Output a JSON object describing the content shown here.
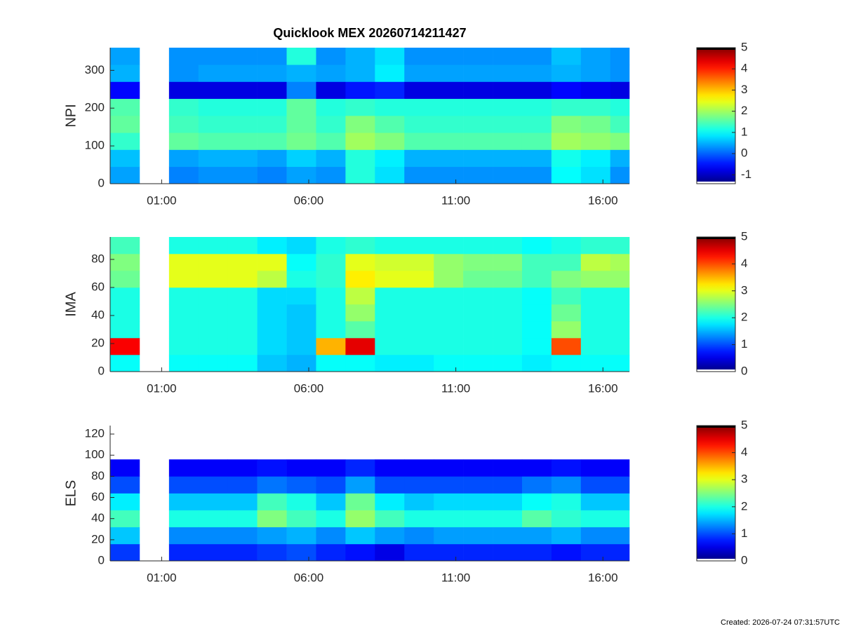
{
  "chart_data": [
    {
      "type": "heatmap",
      "title": "Quicklook MEX 20260714211427",
      "ylabel": "NPI",
      "colormap": "jet",
      "xlim": [
        -0.75,
        16.9
      ],
      "xticks": [
        {
          "value": 1,
          "label": "01:00"
        },
        {
          "value": 6,
          "label": "06:00"
        },
        {
          "value": 11,
          "label": "11:00"
        },
        {
          "value": 16,
          "label": "16:00"
        }
      ],
      "ylim": [
        0,
        360
      ],
      "yticks": [
        0,
        100,
        200,
        300
      ],
      "clim": [
        -1.42,
        5
      ],
      "cticks": [
        -1,
        0,
        1,
        2,
        3,
        4,
        5
      ],
      "xbins": [
        -0.75,
        0.25,
        1.25,
        2.25,
        3.25,
        4.25,
        5.25,
        6.25,
        7.25,
        8.25,
        9.25,
        10.25,
        11.25,
        12.25,
        13.25,
        14.25,
        15.25,
        16.25,
        16.9
      ],
      "ybins": [
        0,
        45,
        90,
        135,
        180,
        225,
        270,
        315,
        360
      ],
      "z": [
        [
          0.4,
          0.6,
          1.3,
          1.6,
          1.5,
          -0.6,
          0.5,
          0.4
        ],
        [
          null,
          null,
          null,
          null,
          null,
          null,
          null,
          null
        ],
        [
          0.2,
          0.4,
          1.6,
          1.4,
          1.3,
          -0.8,
          0.3,
          0.3
        ],
        [
          0.3,
          0.5,
          1.5,
          1.3,
          1.2,
          -0.8,
          0.4,
          0.3
        ],
        [
          0.3,
          0.5,
          1.5,
          1.3,
          1.2,
          -0.8,
          0.4,
          0.3
        ],
        [
          0.2,
          0.4,
          1.5,
          1.3,
          1.2,
          -0.8,
          0.4,
          0.3
        ],
        [
          0.4,
          0.7,
          1.7,
          1.6,
          1.6,
          0.2,
          0.5,
          1.2
        ],
        [
          0.3,
          0.5,
          1.5,
          1.3,
          1.2,
          -0.8,
          0.4,
          0.3
        ],
        [
          1.2,
          1.2,
          2.0,
          1.8,
          1.3,
          -0.5,
          0.5,
          0.5
        ],
        [
          0.8,
          0.9,
          1.8,
          1.5,
          1.2,
          -0.4,
          0.9,
          0.8
        ],
        [
          0.3,
          0.5,
          1.5,
          1.3,
          1.2,
          -0.8,
          0.4,
          0.3
        ],
        [
          0.3,
          0.5,
          1.5,
          1.3,
          1.2,
          -0.8,
          0.4,
          0.3
        ],
        [
          0.3,
          0.5,
          1.5,
          1.3,
          1.2,
          -0.8,
          0.4,
          0.3
        ],
        [
          0.3,
          0.5,
          1.5,
          1.3,
          1.2,
          -0.8,
          0.4,
          0.3
        ],
        [
          0.3,
          0.5,
          1.5,
          1.3,
          1.2,
          -0.8,
          0.4,
          0.3
        ],
        [
          1.0,
          1.1,
          2.0,
          1.8,
          1.3,
          -0.6,
          0.5,
          0.6
        ],
        [
          0.8,
          0.9,
          1.9,
          1.7,
          1.3,
          -0.7,
          0.4,
          0.4
        ],
        [
          0.3,
          0.5,
          1.8,
          1.4,
          1.2,
          -0.8,
          0.3,
          0.3
        ]
      ]
    },
    {
      "type": "heatmap",
      "ylabel": "IMA",
      "colormap": "jet",
      "xlim": [
        -0.75,
        16.9
      ],
      "xticks": [
        {
          "value": 1,
          "label": "01:00"
        },
        {
          "value": 6,
          "label": "06:00"
        },
        {
          "value": 11,
          "label": "11:00"
        },
        {
          "value": 16,
          "label": "16:00"
        }
      ],
      "ylim": [
        0,
        96
      ],
      "yticks": [
        0,
        20,
        40,
        60,
        80
      ],
      "clim": [
        0,
        5
      ],
      "cticks": [
        0,
        1,
        2,
        3,
        4,
        5
      ],
      "xbins": [
        -0.75,
        0.25,
        1.25,
        2.25,
        3.25,
        4.25,
        5.25,
        6.25,
        7.25,
        8.25,
        9.25,
        10.25,
        11.25,
        12.25,
        13.25,
        14.25,
        15.25,
        16.25,
        16.9
      ],
      "ybins": [
        0,
        12,
        24,
        36,
        48,
        60,
        72,
        84,
        96
      ],
      "z": [
        [
          1.9,
          4.4,
          2.0,
          2.0,
          2.0,
          2.4,
          2.5,
          2.2
        ],
        [
          null,
          null,
          null,
          null,
          null,
          null,
          null,
          null
        ],
        [
          1.9,
          2.0,
          2.0,
          2.0,
          2.0,
          3.0,
          3.0,
          2.0
        ],
        [
          1.9,
          2.0,
          2.0,
          2.0,
          2.0,
          3.0,
          3.0,
          2.0
        ],
        [
          1.9,
          2.0,
          2.0,
          2.0,
          2.0,
          3.0,
          3.0,
          2.0
        ],
        [
          1.6,
          1.7,
          1.7,
          1.7,
          1.7,
          2.8,
          3.0,
          1.8
        ],
        [
          1.5,
          1.6,
          1.6,
          1.6,
          1.7,
          2.0,
          1.9,
          1.7
        ],
        [
          1.9,
          3.5,
          2.0,
          2.0,
          2.0,
          2.1,
          2.1,
          2.0
        ],
        [
          1.9,
          4.5,
          2.3,
          2.6,
          2.8,
          3.2,
          3.0,
          2.1
        ],
        [
          1.8,
          2.0,
          2.0,
          2.0,
          2.0,
          3.0,
          2.9,
          2.0
        ],
        [
          1.8,
          2.0,
          2.0,
          2.0,
          2.0,
          3.0,
          2.9,
          2.0
        ],
        [
          1.9,
          2.0,
          2.0,
          2.0,
          2.0,
          2.6,
          2.6,
          2.0
        ],
        [
          1.9,
          2.0,
          2.0,
          2.0,
          2.0,
          2.4,
          2.5,
          2.0
        ],
        [
          1.9,
          2.0,
          2.0,
          2.0,
          2.0,
          2.4,
          2.5,
          2.0
        ],
        [
          1.8,
          1.9,
          1.9,
          1.9,
          1.9,
          2.2,
          2.2,
          1.9
        ],
        [
          1.9,
          4.0,
          2.6,
          2.4,
          2.2,
          2.5,
          2.2,
          2.0
        ],
        [
          1.9,
          2.0,
          2.0,
          2.0,
          2.0,
          2.6,
          2.8,
          2.1
        ],
        [
          1.9,
          2.0,
          2.0,
          2.0,
          2.0,
          2.6,
          2.7,
          2.1
        ]
      ]
    },
    {
      "type": "heatmap",
      "ylabel": "ELS",
      "colormap": "jet",
      "xlim": [
        -0.75,
        16.9
      ],
      "xticks": [
        {
          "value": 1,
          "label": "01:00"
        },
        {
          "value": 6,
          "label": "06:00"
        },
        {
          "value": 11,
          "label": "11:00"
        },
        {
          "value": 16,
          "label": "16:00"
        }
      ],
      "ylim": [
        0,
        128
      ],
      "yticks": [
        0,
        20,
        40,
        60,
        80,
        100,
        120
      ],
      "clim": [
        0,
        5
      ],
      "cticks": [
        0,
        1,
        2,
        3,
        4,
        5
      ],
      "xbins": [
        -0.75,
        0.25,
        1.25,
        2.25,
        3.25,
        4.25,
        5.25,
        6.25,
        7.25,
        8.25,
        9.25,
        10.25,
        11.25,
        12.25,
        13.25,
        14.25,
        15.25,
        16.25,
        16.9
      ],
      "ybins": [
        0,
        16,
        32,
        48,
        64,
        80,
        96,
        112,
        128
      ],
      "z": [
        [
          0.9,
          1.6,
          2.2,
          1.8,
          1.0,
          0.6,
          null,
          null
        ],
        [
          null,
          null,
          null,
          null,
          null,
          null,
          null,
          null
        ],
        [
          0.8,
          1.3,
          2.0,
          1.6,
          1.0,
          0.6,
          null,
          null
        ],
        [
          0.8,
          1.3,
          2.0,
          1.6,
          1.0,
          0.6,
          null,
          null
        ],
        [
          0.8,
          1.3,
          2.0,
          1.6,
          1.0,
          0.6,
          null,
          null
        ],
        [
          0.9,
          1.4,
          2.5,
          2.2,
          1.2,
          0.7,
          null,
          null
        ],
        [
          1.0,
          1.5,
          2.2,
          2.0,
          1.1,
          0.6,
          null,
          null
        ],
        [
          0.8,
          1.3,
          2.0,
          1.6,
          1.0,
          0.6,
          null,
          null
        ],
        [
          0.7,
          1.6,
          2.6,
          2.4,
          1.4,
          0.8,
          null,
          null
        ],
        [
          0.5,
          1.4,
          2.2,
          1.8,
          1.0,
          0.6,
          null,
          null
        ],
        [
          0.8,
          1.3,
          2.0,
          1.6,
          1.0,
          0.6,
          null,
          null
        ],
        [
          0.8,
          1.4,
          2.0,
          1.7,
          1.0,
          0.6,
          null,
          null
        ],
        [
          0.8,
          1.4,
          2.0,
          1.7,
          1.0,
          0.6,
          null,
          null
        ],
        [
          0.8,
          1.4,
          2.0,
          1.7,
          1.0,
          0.6,
          null,
          null
        ],
        [
          0.8,
          1.4,
          2.3,
          1.9,
          1.2,
          0.6,
          null,
          null
        ],
        [
          0.7,
          1.5,
          2.1,
          2.0,
          1.3,
          0.7,
          null,
          null
        ],
        [
          0.8,
          1.3,
          2.0,
          1.6,
          1.0,
          0.6,
          null,
          null
        ],
        [
          0.8,
          1.3,
          2.0,
          1.6,
          1.0,
          0.6,
          null,
          null
        ]
      ]
    }
  ],
  "footer": "Created: 2026-07-24 07:31:57UTC"
}
